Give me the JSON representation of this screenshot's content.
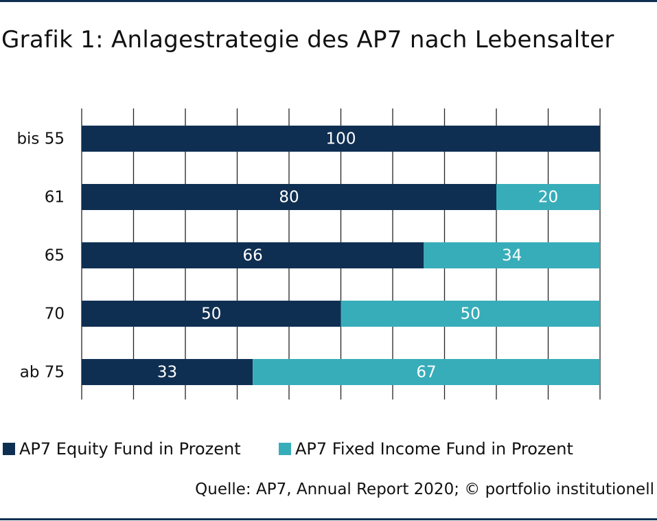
{
  "title": "Grafik 1: Anlagestrategie des AP7 nach Lebensalter",
  "source": "Quelle: AP7, Annual Report 2020; © portfolio institutionell",
  "colors": {
    "equity": "#0f2f52",
    "fixed_income": "#37adb9",
    "rule": "#0f2f52"
  },
  "chart_data": {
    "type": "bar",
    "orientation": "horizontal",
    "stacked": true,
    "categories": [
      "bis 55",
      "61",
      "65",
      "70",
      "ab 75"
    ],
    "series": [
      {
        "name": "AP7 Equity Fund in Prozent",
        "values": [
          100,
          80,
          66,
          50,
          33
        ],
        "color": "#0f2f52"
      },
      {
        "name": "AP7 Fixed Income Fund in Prozent",
        "values": [
          0,
          20,
          34,
          50,
          67
        ],
        "color": "#37adb9"
      }
    ],
    "xlim": [
      0,
      100
    ],
    "grid": true,
    "legend_position": "bottom"
  }
}
